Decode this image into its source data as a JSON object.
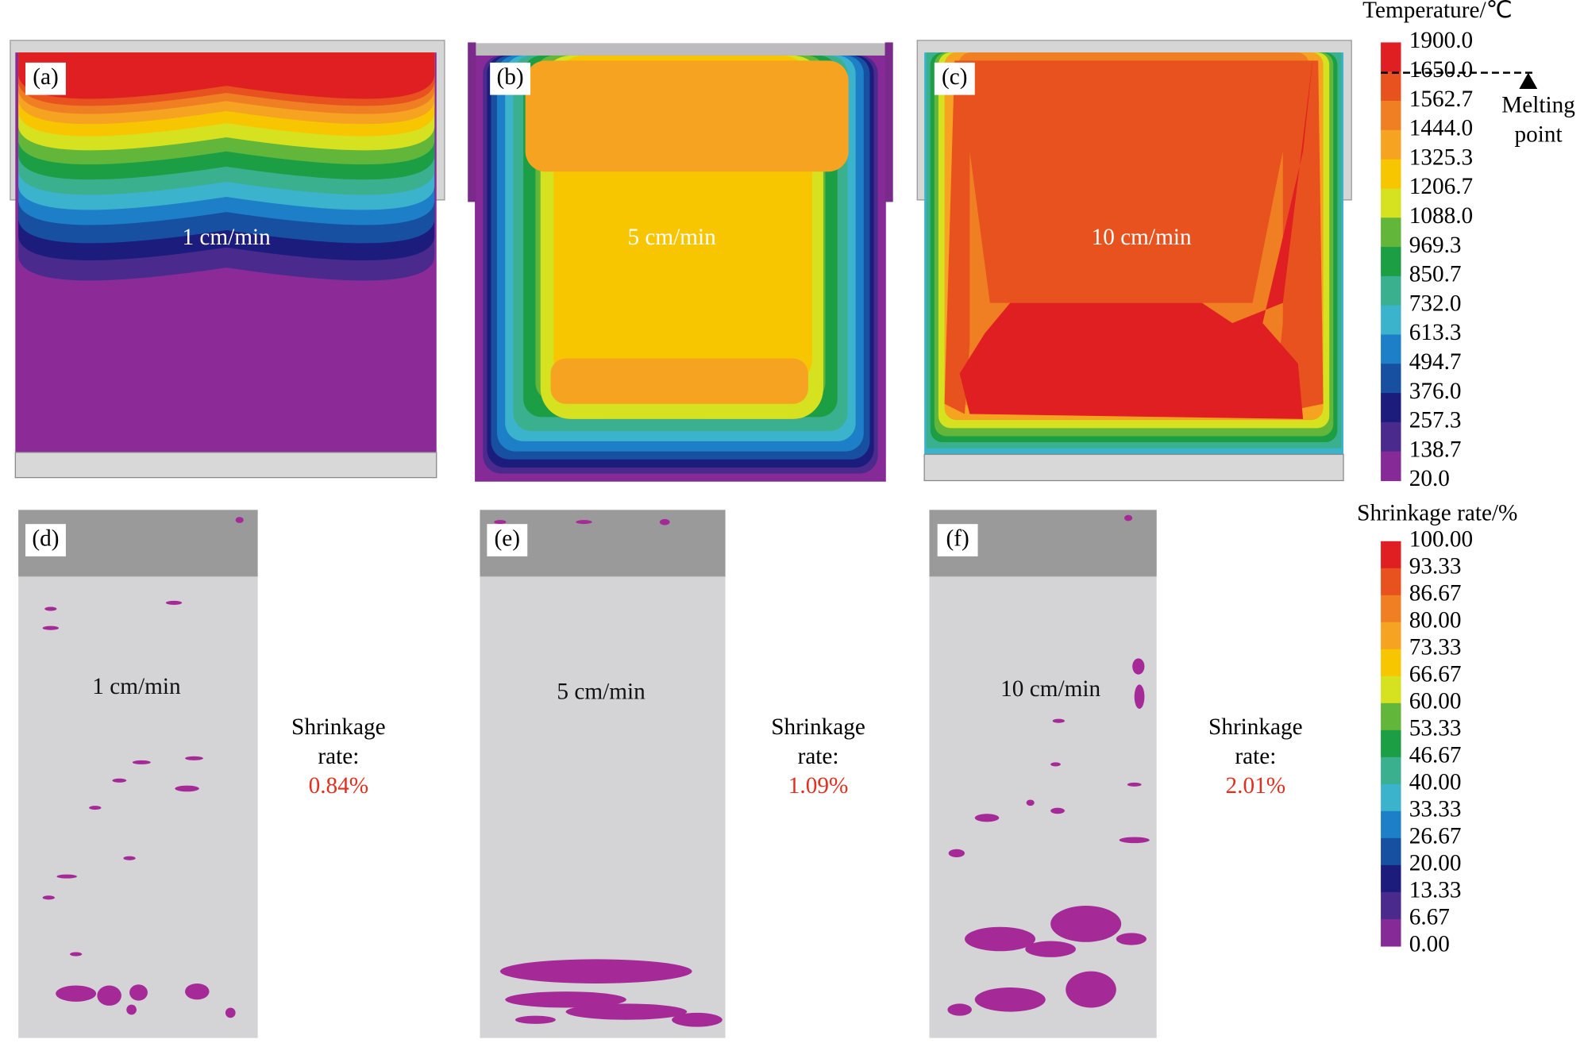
{
  "panels": [
    {
      "label": "(a)",
      "speed": "1 cm/min"
    },
    {
      "label": "(b)",
      "speed": "5 cm/min"
    },
    {
      "label": "(c)",
      "speed": "10 cm/min"
    },
    {
      "label": "(d)",
      "speed": "1 cm/min"
    },
    {
      "label": "(e)",
      "speed": "5 cm/min"
    },
    {
      "label": "(f)",
      "speed": "10 cm/min"
    }
  ],
  "shrinkage_notes": [
    {
      "line1": "Shrinkage",
      "line2": "rate:",
      "value": "0.84%"
    },
    {
      "line1": "Shrinkage",
      "line2": "rate:",
      "value": "1.09%"
    },
    {
      "line1": "Shrinkage",
      "line2": "rate:",
      "value": "2.01%"
    }
  ],
  "temperature_legend": {
    "title": "Temperature/℃",
    "levels": [
      "1900.0",
      "1650.0",
      "1562.7",
      "1444.0",
      "1325.3",
      "1206.7",
      "1088.0",
      "969.3",
      "850.7",
      "732.0",
      "613.3",
      "494.7",
      "376.0",
      "257.3",
      "138.7",
      "20.0"
    ]
  },
  "melting_point": {
    "line1": "Melting",
    "line2": "point"
  },
  "shrinkage_legend": {
    "title": "Shrinkage rate/%",
    "levels": [
      "100.00",
      "93.33",
      "86.67",
      "80.00",
      "73.33",
      "66.67",
      "60.00",
      "53.33",
      "46.67",
      "40.00",
      "33.33",
      "26.67",
      "20.00",
      "13.33",
      "6.67",
      "0.00"
    ]
  }
}
